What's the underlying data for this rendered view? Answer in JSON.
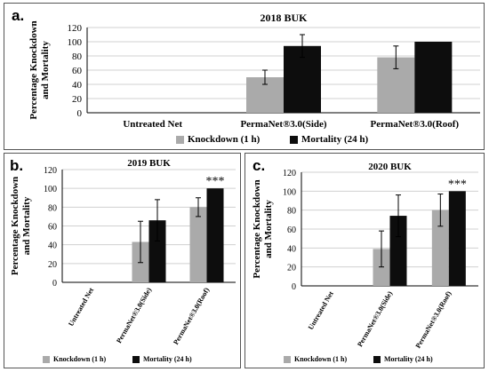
{
  "panels": [
    {
      "letter": "a."
    },
    {
      "letter": "b."
    },
    {
      "letter": "c."
    }
  ],
  "colors": {
    "knockdown": "#aaaaaa",
    "mortality": "#0d0d0d",
    "grid": "#d0d0d0"
  },
  "chart_data": [
    {
      "type": "bar",
      "title": "2018 BUK",
      "ylabel": "Percentage Knockdown and Mortality",
      "xlabel": "",
      "ylim": [
        0,
        120
      ],
      "yticks": [
        0,
        20,
        40,
        60,
        80,
        100,
        120
      ],
      "grid": true,
      "legend_position": "bottom",
      "categories": [
        "Untreated Net",
        "PermaNet®3.0(Side)",
        "PermaNet®3.0(Roof)"
      ],
      "series": [
        {
          "name": "Knockdown (1 h)",
          "values": [
            0,
            50,
            78
          ],
          "errors": [
            0,
            10,
            16
          ]
        },
        {
          "name": "Mortality (24 h)",
          "values": [
            0,
            94,
            100
          ],
          "errors": [
            0,
            16,
            0
          ]
        }
      ],
      "annotations": []
    },
    {
      "type": "bar",
      "title": "2019 BUK",
      "ylabel": "Percentage Knockdown and Mortality",
      "xlabel": "",
      "ylim": [
        0,
        120
      ],
      "yticks": [
        0,
        20,
        40,
        60,
        80,
        100,
        120
      ],
      "grid": true,
      "legend_position": "bottom",
      "categories": [
        "Untreated Net",
        "PermaNet®3.0(Side)",
        "PermaNet®3.0(Roof)"
      ],
      "series": [
        {
          "name": "Knockdown (1 h)",
          "values": [
            0,
            43,
            80
          ],
          "errors": [
            0,
            22,
            10
          ]
        },
        {
          "name": "Mortality (24 h)",
          "values": [
            0,
            66,
            100
          ],
          "errors": [
            0,
            22,
            0
          ]
        }
      ],
      "annotations": [
        {
          "category": "PermaNet®3.0(Roof)",
          "series": "Mortality (24 h)",
          "text": "***"
        }
      ]
    },
    {
      "type": "bar",
      "title": "2020 BUK",
      "ylabel": "Percentage Knockdown and Mortality",
      "xlabel": "",
      "ylim": [
        0,
        120
      ],
      "yticks": [
        0,
        20,
        40,
        60,
        80,
        100,
        120
      ],
      "grid": true,
      "legend_position": "bottom",
      "categories": [
        "Untreated Net",
        "PermaNet®3.0(Side)",
        "PermaNet®3.0(Roof)"
      ],
      "series": [
        {
          "name": "Knockdown (1 h)",
          "values": [
            0,
            39,
            80
          ],
          "errors": [
            0,
            19,
            17
          ]
        },
        {
          "name": "Mortality (24 h)",
          "values": [
            0,
            74,
            100
          ],
          "errors": [
            0,
            22,
            0
          ]
        }
      ],
      "annotations": [
        {
          "category": "PermaNet®3.0(Roof)",
          "series": "Mortality (24 h)",
          "text": "***"
        }
      ]
    }
  ]
}
